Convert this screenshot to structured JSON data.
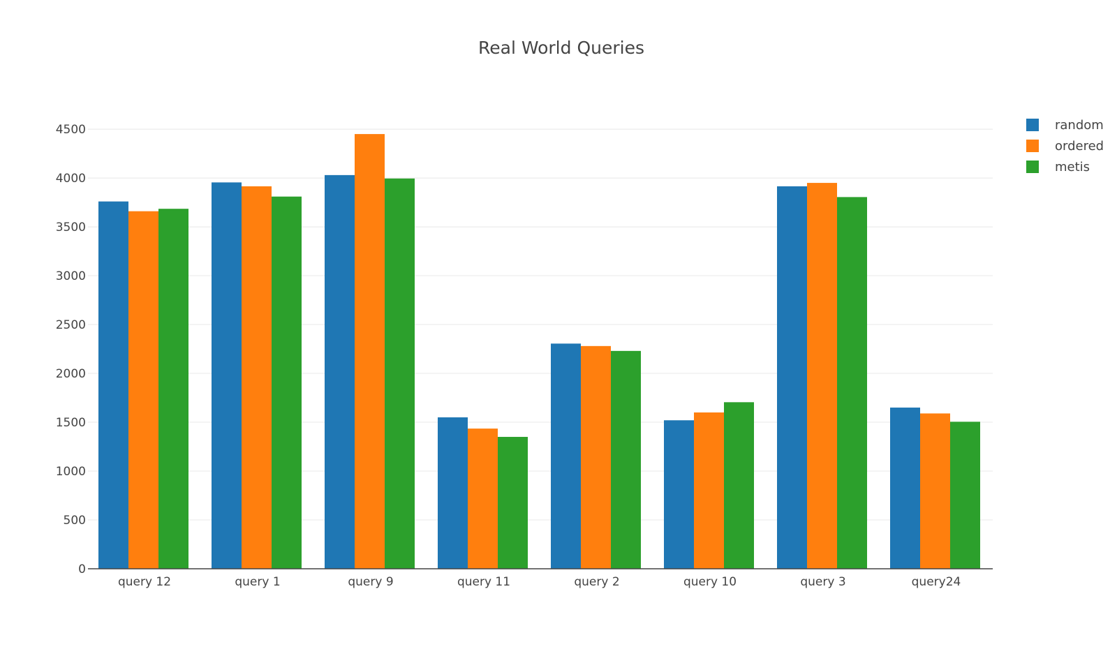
{
  "chart_data": {
    "type": "bar",
    "title": "Real World Queries",
    "xlabel": "",
    "ylabel": "",
    "categories": [
      "query 12",
      "query 1",
      "query 9",
      "query 11",
      "query 2",
      "query 10",
      "query 3",
      "query24"
    ],
    "series": [
      {
        "name": "random",
        "color": "#1f77b4",
        "values": [
          3760,
          3955,
          4030,
          1550,
          2305,
          1520,
          3915,
          1650
        ]
      },
      {
        "name": "ordered",
        "color": "#ff7f0e",
        "values": [
          3660,
          3915,
          4450,
          1435,
          2280,
          1600,
          3950,
          1590
        ]
      },
      {
        "name": "metis",
        "color": "#2ca02c",
        "values": [
          3685,
          3810,
          3995,
          1350,
          2230,
          1705,
          3805,
          1505
        ]
      }
    ],
    "ylim": [
      0,
      4500
    ],
    "yticks": [
      0,
      500,
      1000,
      1500,
      2000,
      2500,
      3000,
      3500,
      4000,
      4500
    ],
    "grid": true,
    "legend_position": "top-right"
  }
}
